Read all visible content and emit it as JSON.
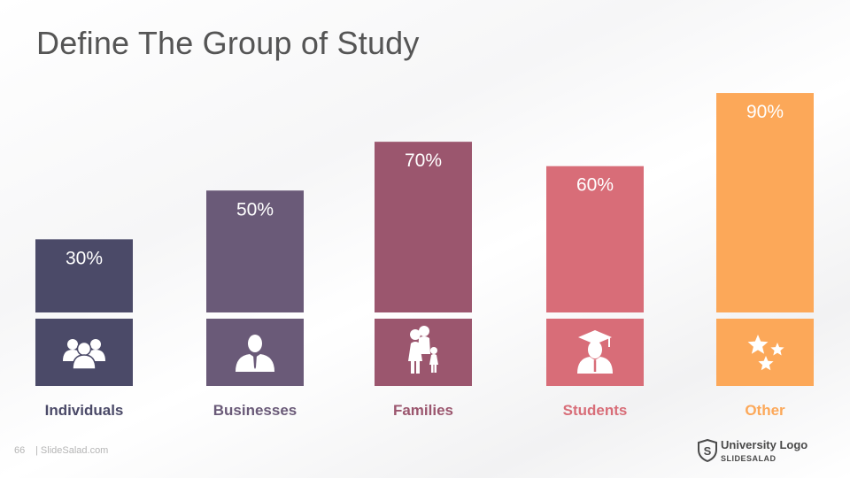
{
  "slide": {
    "title": "Define The Group of Study",
    "page_number": "66",
    "site": "| SlideSalad.com",
    "logo_main": "University Logo",
    "logo_sub": "SLIDESALAD"
  },
  "chart_data": {
    "type": "bar",
    "categories": [
      "Individuals",
      "Businesses",
      "Families",
      "Students",
      "Other"
    ],
    "values": [
      30,
      50,
      70,
      60,
      90
    ],
    "value_labels": [
      "30%",
      "50%",
      "70%",
      "60%",
      "90%"
    ],
    "icons": [
      "people-group-icon",
      "businessman-icon",
      "family-icon",
      "graduate-icon",
      "stars-icon"
    ],
    "colors": [
      "#4b4a68",
      "#6a5a78",
      "#9b566e",
      "#d86d78",
      "#fca859"
    ],
    "title": "Define The Group of Study",
    "xlabel": "",
    "ylabel": "",
    "ylim": [
      0,
      90
    ],
    "grid": false,
    "legend": "none"
  }
}
